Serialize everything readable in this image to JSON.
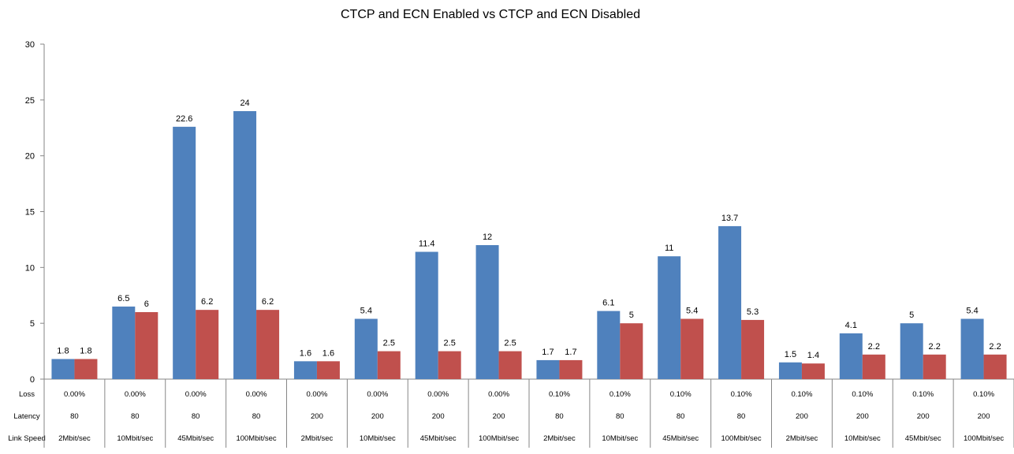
{
  "chart_data": {
    "type": "bar",
    "title": "CTCP and ECN Enabled vs CTCP and ECN Disabled",
    "ylim": [
      0,
      30
    ],
    "yticks": [
      0,
      5,
      10,
      15,
      20,
      25,
      30
    ],
    "grid": false,
    "legend": "none",
    "row_labels": {
      "loss": "Loss",
      "latency": "Latency",
      "speed": "Link Speed"
    },
    "categories": [
      {
        "loss": "0.00%",
        "latency": "80",
        "speed": "2Mbit/sec"
      },
      {
        "loss": "0.00%",
        "latency": "80",
        "speed": "10Mbit/sec"
      },
      {
        "loss": "0.00%",
        "latency": "80",
        "speed": "45Mbit/sec"
      },
      {
        "loss": "0.00%",
        "latency": "80",
        "speed": "100Mbit/sec"
      },
      {
        "loss": "0.00%",
        "latency": "200",
        "speed": "2Mbit/sec"
      },
      {
        "loss": "0.00%",
        "latency": "200",
        "speed": "10Mbit/sec"
      },
      {
        "loss": "0.00%",
        "latency": "200",
        "speed": "45Mbit/sec"
      },
      {
        "loss": "0.00%",
        "latency": "200",
        "speed": "100Mbit/sec"
      },
      {
        "loss": "0.10%",
        "latency": "80",
        "speed": "2Mbit/sec"
      },
      {
        "loss": "0.10%",
        "latency": "80",
        "speed": "10Mbit/sec"
      },
      {
        "loss": "0.10%",
        "latency": "80",
        "speed": "45Mbit/sec"
      },
      {
        "loss": "0.10%",
        "latency": "80",
        "speed": "100Mbit/sec"
      },
      {
        "loss": "0.10%",
        "latency": "200",
        "speed": "2Mbit/sec"
      },
      {
        "loss": "0.10%",
        "latency": "200",
        "speed": "10Mbit/sec"
      },
      {
        "loss": "0.10%",
        "latency": "200",
        "speed": "45Mbit/sec"
      },
      {
        "loss": "0.10%",
        "latency": "200",
        "speed": "100Mbit/sec"
      }
    ],
    "series": [
      {
        "name": "CTCP and ECN Enabled",
        "color": "#4F81BD",
        "values": [
          1.8,
          6.5,
          22.6,
          24,
          1.6,
          5.4,
          11.4,
          12,
          1.7,
          6.1,
          11,
          13.7,
          1.5,
          4.1,
          5,
          5.4
        ]
      },
      {
        "name": "CTCP and ECN Disabled",
        "color": "#C0504D",
        "values": [
          1.8,
          6,
          6.2,
          6.2,
          1.6,
          2.5,
          2.5,
          2.5,
          1.7,
          5,
          5.4,
          5.3,
          1.4,
          2.2,
          2.2,
          2.2
        ]
      }
    ]
  }
}
